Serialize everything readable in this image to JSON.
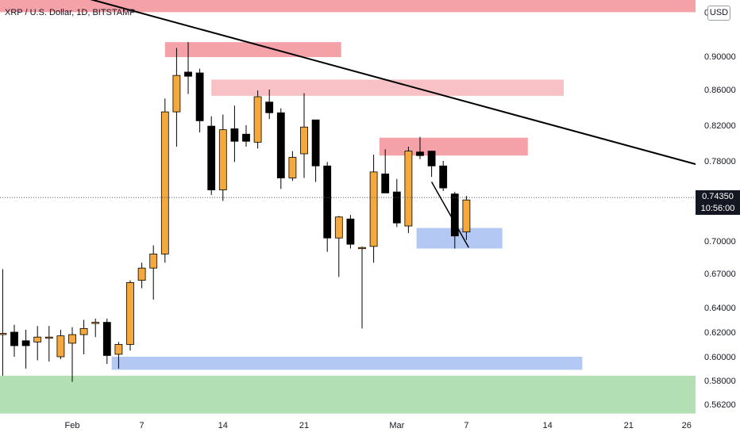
{
  "chart_title": "XRP / U.S. Dollar, 1D, BITSTAMP",
  "currency_button": "USD",
  "last_price": {
    "value": "0.74350",
    "countdown": "10:56:00",
    "price": 0.7435
  },
  "colors": {
    "bullish_candle": "#f5a83b",
    "bearish_candle": "#000000",
    "supply_zone": "#f4a1a8",
    "supply_zone_light": "#f8c1c6",
    "demand_zone": "#b3c8f3",
    "support_zone": "#b2dfb4",
    "trendline": "#000000",
    "background": "#ffffff"
  },
  "chart_data": {
    "type": "candlestick",
    "title": "XRP / U.S. Dollar, 1D, BITSTAMP",
    "ylim": [
      0.553,
      0.996
    ],
    "y_ticks": [
      {
        "value": 0.9,
        "label": "0.90000"
      },
      {
        "value": 0.86,
        "label": "0.86000"
      },
      {
        "value": 0.82,
        "label": "0.82000"
      },
      {
        "value": 0.78,
        "label": "0.78000"
      },
      {
        "value": 0.7,
        "label": "0.70000"
      },
      {
        "value": 0.67,
        "label": "0.67000"
      },
      {
        "value": 0.64,
        "label": "0.64000"
      },
      {
        "value": 0.62,
        "label": "0.62000"
      },
      {
        "value": 0.6,
        "label": "0.60000"
      },
      {
        "value": 0.58,
        "label": "0.58000"
      },
      {
        "value": 0.562,
        "label": "0.56200"
      }
    ],
    "partial_top_tick_label": "0.",
    "x_ticks": [
      {
        "label": "Feb",
        "day": 0
      },
      {
        "label": "7",
        "day": 6
      },
      {
        "label": "14",
        "day": 13
      },
      {
        "label": "21",
        "day": 20
      },
      {
        "label": "Mar",
        "day": 28
      },
      {
        "label": "7",
        "day": 34
      },
      {
        "label": "14",
        "day": 41
      },
      {
        "label": "21",
        "day": 48
      },
      {
        "label": "26",
        "day": 53
      }
    ],
    "candles": [
      {
        "day": -6,
        "open": 0.619,
        "high": 0.674,
        "low": 0.584,
        "close": 0.619
      },
      {
        "day": -5,
        "open": 0.62,
        "high": 0.626,
        "low": 0.6,
        "close": 0.609
      },
      {
        "day": -4,
        "open": 0.613,
        "high": 0.622,
        "low": 0.59,
        "close": 0.609
      },
      {
        "day": -3,
        "open": 0.612,
        "high": 0.625,
        "low": 0.597,
        "close": 0.616
      },
      {
        "day": -2,
        "open": 0.616,
        "high": 0.625,
        "low": 0.596,
        "close": 0.616
      },
      {
        "day": -1,
        "open": 0.6,
        "high": 0.622,
        "low": 0.598,
        "close": 0.617
      },
      {
        "day": 0,
        "open": 0.611,
        "high": 0.624,
        "low": 0.579,
        "close": 0.618
      },
      {
        "day": 1,
        "open": 0.618,
        "high": 0.63,
        "low": 0.602,
        "close": 0.623
      },
      {
        "day": 2,
        "open": 0.628,
        "high": 0.631,
        "low": 0.616,
        "close": 0.628
      },
      {
        "day": 3,
        "open": 0.628,
        "high": 0.631,
        "low": 0.594,
        "close": 0.601
      },
      {
        "day": 4,
        "open": 0.602,
        "high": 0.612,
        "low": 0.59,
        "close": 0.61
      },
      {
        "day": 5,
        "open": 0.61,
        "high": 0.664,
        "low": 0.605,
        "close": 0.662
      },
      {
        "day": 6,
        "open": 0.664,
        "high": 0.68,
        "low": 0.657,
        "close": 0.675
      },
      {
        "day": 7,
        "open": 0.675,
        "high": 0.696,
        "low": 0.647,
        "close": 0.688
      },
      {
        "day": 8,
        "open": 0.688,
        "high": 0.85,
        "low": 0.68,
        "close": 0.835
      },
      {
        "day": 9,
        "open": 0.835,
        "high": 0.91,
        "low": 0.796,
        "close": 0.877
      },
      {
        "day": 10,
        "open": 0.881,
        "high": 0.917,
        "low": 0.855,
        "close": 0.876
      },
      {
        "day": 11,
        "open": 0.88,
        "high": 0.885,
        "low": 0.812,
        "close": 0.825
      },
      {
        "day": 12,
        "open": 0.819,
        "high": 0.83,
        "low": 0.746,
        "close": 0.751
      },
      {
        "day": 13,
        "open": 0.751,
        "high": 0.832,
        "low": 0.74,
        "close": 0.815
      },
      {
        "day": 14,
        "open": 0.816,
        "high": 0.842,
        "low": 0.779,
        "close": 0.802
      },
      {
        "day": 15,
        "open": 0.81,
        "high": 0.82,
        "low": 0.796,
        "close": 0.802
      },
      {
        "day": 16,
        "open": 0.801,
        "high": 0.859,
        "low": 0.794,
        "close": 0.852
      },
      {
        "day": 17,
        "open": 0.846,
        "high": 0.86,
        "low": 0.827,
        "close": 0.834
      },
      {
        "day": 18,
        "open": 0.834,
        "high": 0.839,
        "low": 0.752,
        "close": 0.763
      },
      {
        "day": 19,
        "open": 0.763,
        "high": 0.791,
        "low": 0.76,
        "close": 0.784
      },
      {
        "day": 20,
        "open": 0.788,
        "high": 0.856,
        "low": 0.763,
        "close": 0.818
      },
      {
        "day": 21,
        "open": 0.826,
        "high": 0.826,
        "low": 0.759,
        "close": 0.775
      },
      {
        "day": 22,
        "open": 0.775,
        "high": 0.779,
        "low": 0.69,
        "close": 0.703
      },
      {
        "day": 23,
        "open": 0.703,
        "high": 0.725,
        "low": 0.667,
        "close": 0.724
      },
      {
        "day": 24,
        "open": 0.722,
        "high": 0.726,
        "low": 0.693,
        "close": 0.697
      },
      {
        "day": 25,
        "open": 0.694,
        "high": 0.695,
        "low": 0.623,
        "close": 0.694
      },
      {
        "day": 26,
        "open": 0.695,
        "high": 0.787,
        "low": 0.68,
        "close": 0.769
      },
      {
        "day": 27,
        "open": 0.767,
        "high": 0.793,
        "low": 0.751,
        "close": 0.748
      },
      {
        "day": 28,
        "open": 0.749,
        "high": 0.762,
        "low": 0.714,
        "close": 0.718
      },
      {
        "day": 29,
        "open": 0.715,
        "high": 0.796,
        "low": 0.708,
        "close": 0.791
      },
      {
        "day": 30,
        "open": 0.79,
        "high": 0.807,
        "low": 0.782,
        "close": 0.786
      },
      {
        "day": 31,
        "open": 0.791,
        "high": 0.791,
        "low": 0.764,
        "close": 0.775
      },
      {
        "day": 32,
        "open": 0.775,
        "high": 0.78,
        "low": 0.75,
        "close": 0.753
      },
      {
        "day": 33,
        "open": 0.747,
        "high": 0.749,
        "low": 0.693,
        "close": 0.705
      },
      {
        "day": 34,
        "open": 0.709,
        "high": 0.745,
        "low": 0.701,
        "close": 0.741
      }
    ],
    "zones": [
      {
        "kind": "supply",
        "x0": -20,
        "x1": 63,
        "y0": 0.953,
        "y1": 0.968
      },
      {
        "kind": "supply",
        "x0": 8,
        "x1": 23.2,
        "y0": 0.899,
        "y1": 0.917
      },
      {
        "kind": "supply_light",
        "x0": 12,
        "x1": 42.4,
        "y0": 0.853,
        "y1": 0.872
      },
      {
        "kind": "supply",
        "x0": 26.5,
        "x1": 39.3,
        "y0": 0.786,
        "y1": 0.806
      },
      {
        "kind": "demand",
        "x0": 29.7,
        "x1": 37.1,
        "y0": 0.693,
        "y1": 0.713
      },
      {
        "kind": "demand",
        "x0": 3.4,
        "x1": 44,
        "y0": 0.589,
        "y1": 0.6
      },
      {
        "kind": "support",
        "x0": -20,
        "x1": 63,
        "y0": 0.555,
        "y1": 0.584
      }
    ],
    "lines": [
      {
        "name": "descending-trendline",
        "x0": -2,
        "y0": 0.982,
        "x1": 64,
        "y1": 0.7445,
        "width": 2
      },
      {
        "name": "short-channel-line",
        "x0": 31.0,
        "y0": 0.759,
        "x1": 34.2,
        "y1": 0.694,
        "width": 1.5
      }
    ]
  }
}
